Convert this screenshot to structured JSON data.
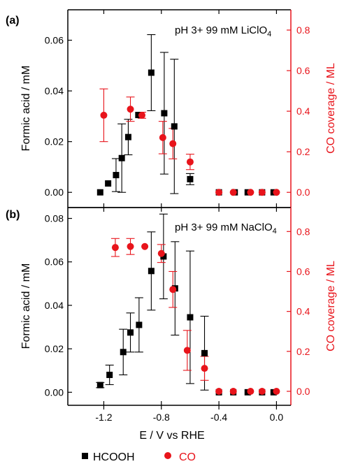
{
  "colors": {
    "hcooh": "#000000",
    "co": "#e8141b",
    "axis": "#000000",
    "right_axis": "#e8141b"
  },
  "xaxis": {
    "label": "E / V vs RHE",
    "ticks": [
      "-1.2",
      "-0.8",
      "-0.4",
      "0.0"
    ]
  },
  "legend": {
    "hcooh": "HCOOH",
    "co": "CO",
    "placement": "bottom"
  },
  "chart_data": [
    {
      "type": "scatter",
      "panel": "(a)",
      "annotation": {
        "prefix": "pH 3+ 99 mM LiClO",
        "subscript": "4"
      },
      "xlabel": "E / V vs RHE",
      "ylabel": "Formic acid / mM",
      "ylabel_right": "CO coverage / ML",
      "xlim": [
        -1.45,
        0.1
      ],
      "xticks": [
        -1.2,
        -0.8,
        -0.4,
        0.0
      ],
      "ylim": [
        -0.006,
        0.072
      ],
      "yticks": [
        "0.00",
        "0.02",
        "0.04",
        "0.06"
      ],
      "y2lim": [
        -0.075,
        0.9
      ],
      "y2ticks": [
        "0.0",
        "0.2",
        "0.4",
        "0.6",
        "0.8"
      ],
      "series": [
        {
          "name": "HCOOH",
          "axis": "left",
          "marker": "square",
          "x": [
            -1.225,
            -1.17,
            -1.115,
            -1.075,
            -1.03,
            -0.96,
            -0.87,
            -0.78,
            -0.71,
            -0.6,
            -0.4,
            -0.29,
            -0.2,
            -0.1,
            -0.02
          ],
          "y": [
            0.0,
            0.0035,
            0.0068,
            0.0135,
            0.0218,
            0.0305,
            0.0472,
            0.0312,
            0.026,
            0.0052,
            0.0,
            0.0,
            0.0,
            0.0,
            0.0
          ],
          "err": [
            0,
            0,
            0.0065,
            0.0135,
            0.007,
            0,
            0.015,
            0.024,
            0.0265,
            0.0022,
            0,
            0,
            0,
            0,
            0
          ]
        },
        {
          "name": "CO",
          "axis": "right",
          "marker": "circle",
          "x": [
            -1.2,
            -1.015,
            -0.935,
            -0.79,
            -0.72,
            -0.6,
            -0.4,
            -0.3,
            -0.18,
            -0.1,
            0.0
          ],
          "y": [
            0.38,
            0.41,
            0.38,
            0.27,
            0.24,
            0.15,
            0.0,
            0.0,
            0.0,
            0.0,
            0.0
          ],
          "err": [
            0.13,
            0.06,
            0.015,
            0.08,
            0.075,
            0.038,
            0,
            0,
            0,
            0,
            0
          ]
        }
      ]
    },
    {
      "type": "scatter",
      "panel": "(b)",
      "annotation": {
        "prefix": "pH 3+ 99 mM NaClO",
        "subscript": "4"
      },
      "xlabel": "E / V vs RHE",
      "ylabel": "Formic acid / mM",
      "ylabel_right": "CO coverage / ML",
      "xlim": [
        -1.45,
        0.1
      ],
      "xticks": [
        -1.2,
        -0.8,
        -0.4,
        0.0
      ],
      "ylim": [
        -0.006,
        0.085
      ],
      "yticks": [
        "0.00",
        "0.02",
        "0.04",
        "0.06",
        "0.08"
      ],
      "y2lim": [
        -0.07,
        0.92
      ],
      "y2ticks": [
        "0.0",
        "0.2",
        "0.4",
        "0.6",
        "0.8"
      ],
      "series": [
        {
          "name": "HCOOH",
          "axis": "left",
          "marker": "square",
          "x": [
            -1.225,
            -1.16,
            -1.065,
            -1.015,
            -0.955,
            -0.87,
            -0.785,
            -0.705,
            -0.6,
            -0.5,
            -0.4,
            -0.3,
            -0.2,
            -0.1,
            -0.02
          ],
          "y": [
            0.0033,
            0.008,
            0.0185,
            0.0275,
            0.031,
            0.0558,
            0.0625,
            0.0478,
            0.0345,
            0.018,
            0.0,
            0.0,
            0.0,
            0.0,
            0.0
          ],
          "err": [
            0.0012,
            0.0045,
            0.0105,
            0.009,
            0.0125,
            0.018,
            0.0195,
            0.0215,
            0.0305,
            0.017,
            0,
            0,
            0,
            0,
            0
          ]
        },
        {
          "name": "CO",
          "axis": "right",
          "marker": "circle",
          "x": [
            -1.12,
            -1.015,
            -0.915,
            -0.8,
            -0.72,
            -0.62,
            -0.5,
            -0.4,
            -0.3,
            -0.18,
            -0.1,
            0.0
          ],
          "y": [
            0.72,
            0.725,
            0.725,
            0.69,
            0.51,
            0.205,
            0.115,
            0.0,
            0.0,
            0.0,
            0.0,
            0.0
          ],
          "err": [
            0.045,
            0.04,
            0.0,
            0.045,
            0.09,
            0.1,
            0.06,
            0,
            0,
            0,
            0,
            0
          ]
        }
      ]
    }
  ]
}
